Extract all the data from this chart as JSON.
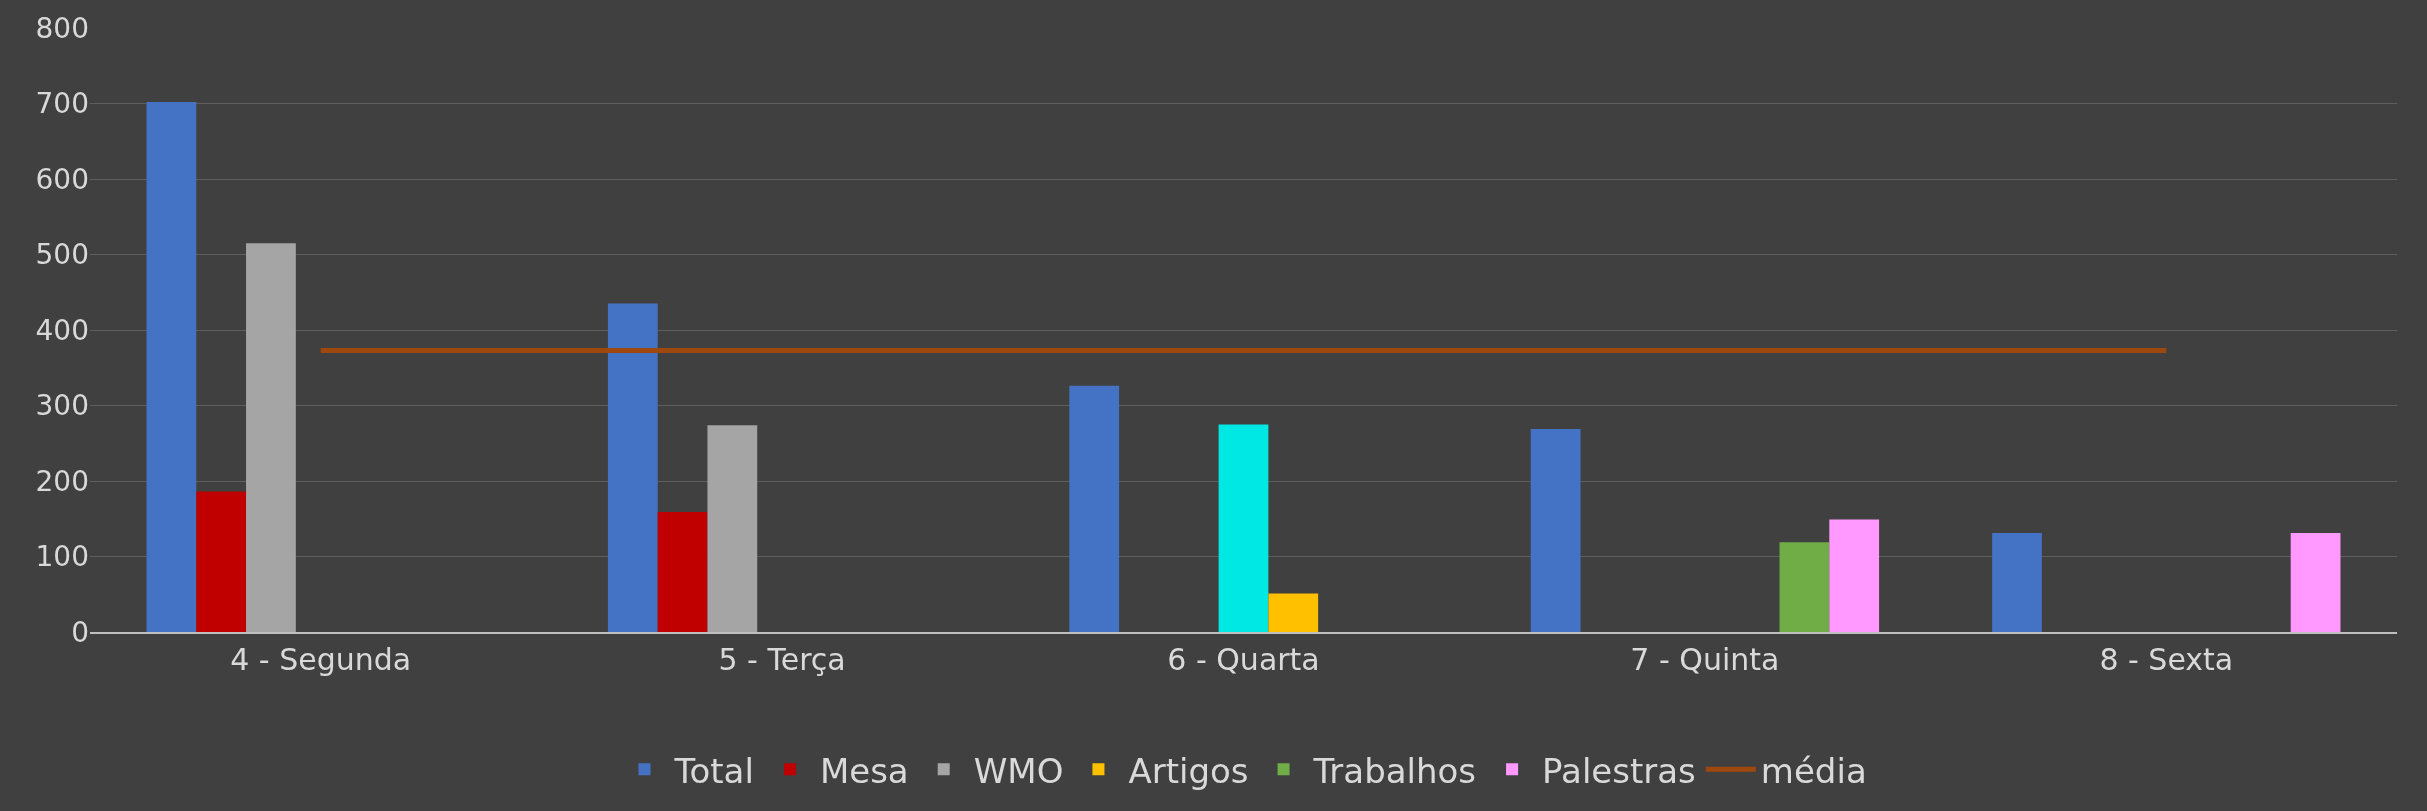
{
  "chart_data": {
    "type": "bar",
    "categories": [
      "4 - Segunda",
      "5 - Terça",
      "6 - Quarta",
      "7 - Quinta",
      "8 - Sexta"
    ],
    "series": [
      {
        "name": "Total",
        "color": "#4472c4",
        "values": [
          702,
          435,
          326,
          269,
          131
        ]
      },
      {
        "name": "Mesa",
        "color": "#c00000",
        "values": [
          186,
          159,
          null,
          null,
          null
        ]
      },
      {
        "name": "WMO",
        "color": "#a5a5a5",
        "values": [
          515,
          274,
          null,
          null,
          null
        ]
      },
      {
        "color": "#00e8e4",
        "values": [
          null,
          null,
          275,
          null,
          null
        ]
      },
      {
        "name": "Artigos",
        "color": "#ffc000",
        "values": [
          null,
          null,
          51,
          null,
          null
        ]
      },
      {
        "name": "Trabalhos",
        "color": "#70ad47",
        "values": [
          null,
          null,
          null,
          119,
          null
        ]
      },
      {
        "name": "Palestras",
        "color": "#ff99ff",
        "values": [
          null,
          null,
          null,
          149,
          131
        ]
      },
      {
        "name": "média",
        "type": "line",
        "color": "#9e480e",
        "values": [
          373,
          373,
          373,
          373,
          373
        ]
      }
    ],
    "ylim": [
      0,
      800
    ],
    "yticks": [
      0,
      100,
      200,
      300,
      400,
      500,
      600,
      700,
      800
    ],
    "grid": "y",
    "legend": "bottom"
  }
}
